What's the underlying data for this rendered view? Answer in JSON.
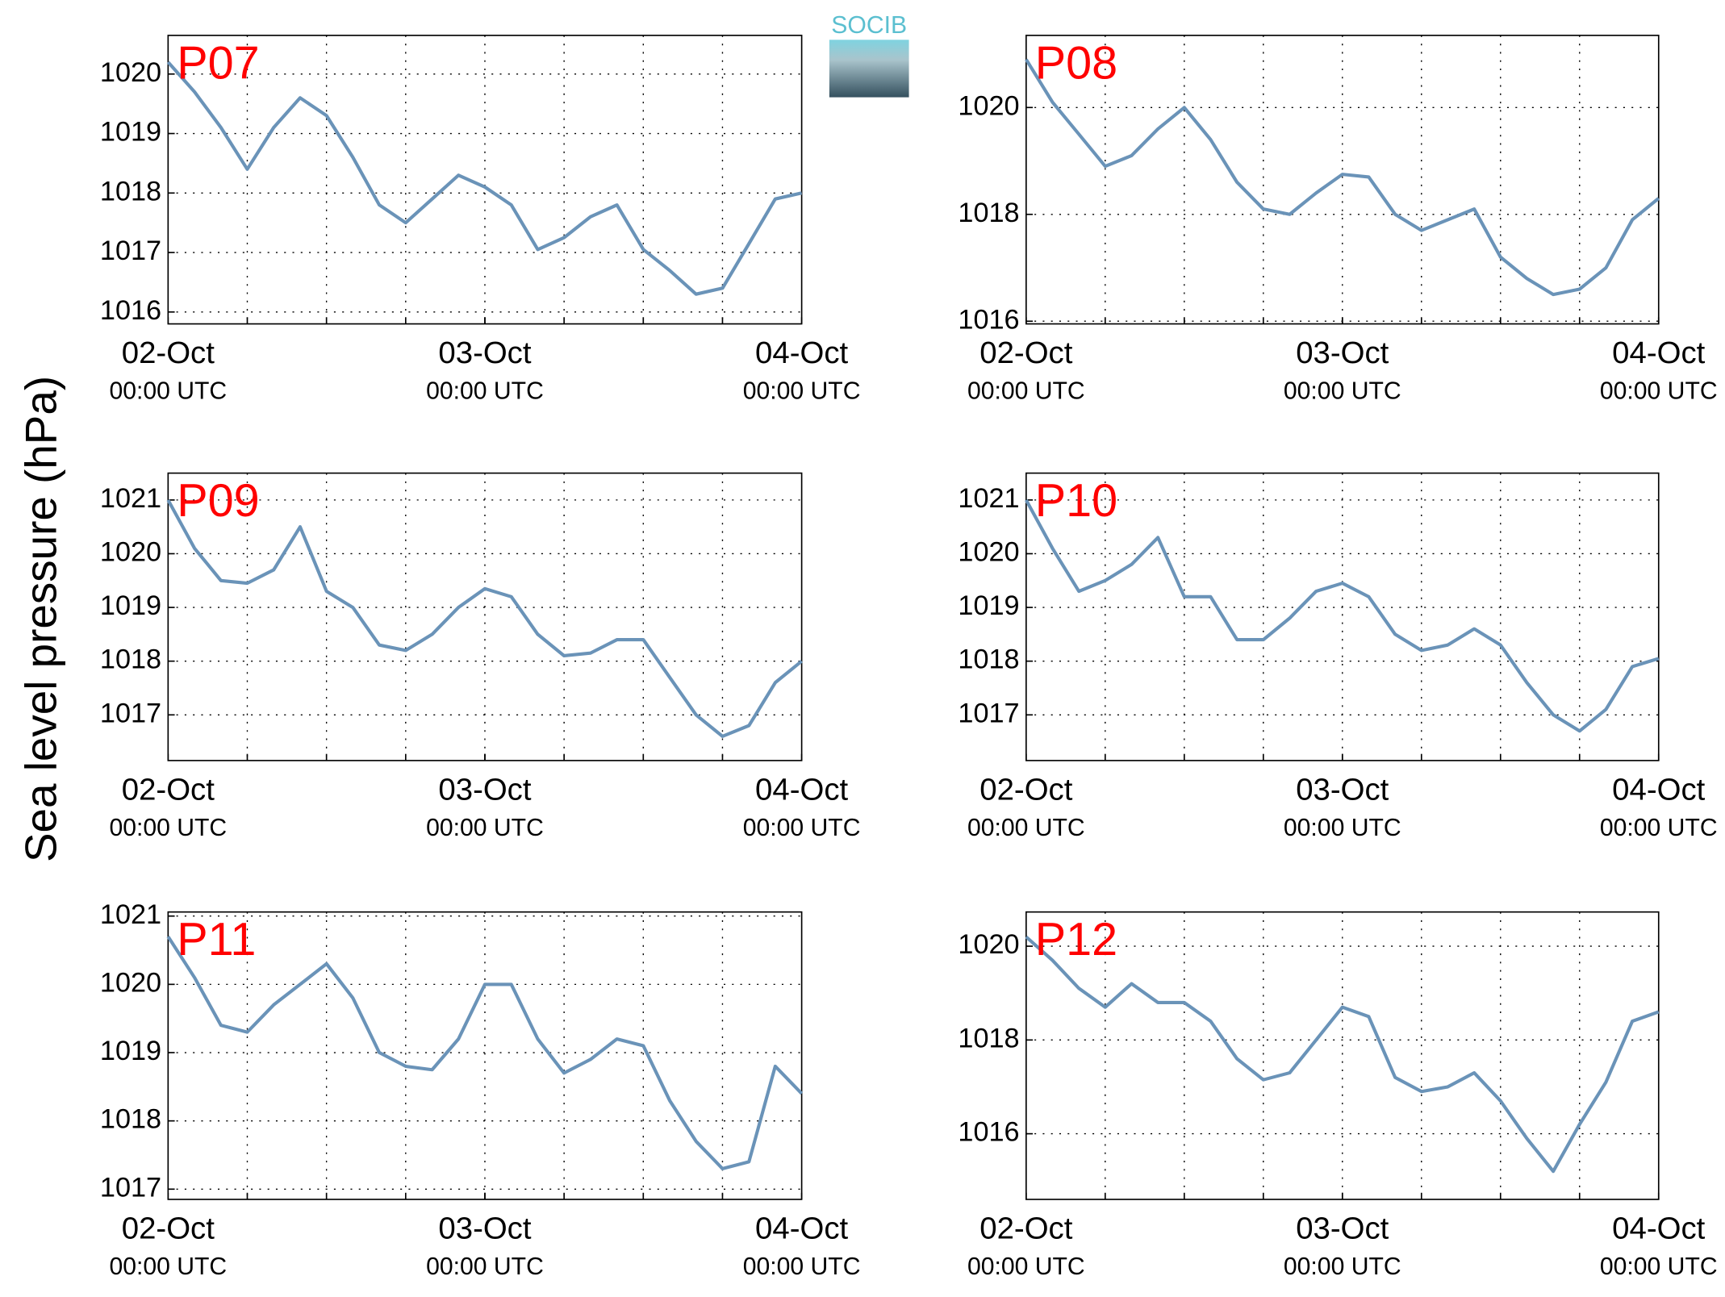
{
  "ylabel": "Sea level pressure (hPa)",
  "logo": "SOCIB",
  "chart_data": [
    {
      "type": "line",
      "title": "P07",
      "color": "#6a93b8",
      "x": [
        0,
        2,
        4,
        6,
        8,
        10,
        12,
        14,
        16,
        18,
        20,
        22,
        24,
        26,
        28,
        30,
        32,
        34,
        36,
        38,
        40,
        42,
        44,
        46,
        48
      ],
      "values": [
        1020.2,
        1019.7,
        1019.1,
        1018.4,
        1019.1,
        1019.6,
        1019.3,
        1018.6,
        1017.8,
        1017.5,
        1017.9,
        1018.3,
        1018.1,
        1017.8,
        1017.05,
        1017.25,
        1017.6,
        1017.8,
        1017.05,
        1016.7,
        1016.3,
        1016.4,
        1017.15,
        1017.9,
        1018.0
      ],
      "xlim": [
        0,
        48
      ],
      "xgrid": [
        6,
        12,
        18,
        24,
        30,
        36,
        42
      ],
      "xticks": [
        {
          "value": 0,
          "label": "02-Oct",
          "sublabel": "00:00 UTC"
        },
        {
          "value": 24,
          "label": "03-Oct",
          "sublabel": "00:00 UTC"
        },
        {
          "value": 48,
          "label": "04-Oct",
          "sublabel": "00:00 UTC"
        }
      ],
      "ylim": [
        1015.8,
        1020.65
      ],
      "yticks": [
        1016,
        1017,
        1018,
        1019,
        1020
      ],
      "grid": true
    },
    {
      "type": "line",
      "title": "P08",
      "color": "#6a93b8",
      "x": [
        0,
        2,
        4,
        6,
        8,
        10,
        12,
        14,
        16,
        18,
        20,
        22,
        24,
        26,
        28,
        30,
        32,
        34,
        36,
        38,
        40,
        42,
        44,
        46,
        48
      ],
      "values": [
        1020.9,
        1020.1,
        1019.5,
        1018.9,
        1019.1,
        1019.6,
        1020.0,
        1019.4,
        1018.6,
        1018.1,
        1018.0,
        1018.4,
        1018.75,
        1018.7,
        1018.0,
        1017.7,
        1017.9,
        1018.1,
        1017.2,
        1016.8,
        1016.5,
        1016.6,
        1017.0,
        1017.9,
        1018.3
      ],
      "xlim": [
        0,
        48
      ],
      "xgrid": [
        6,
        12,
        18,
        24,
        30,
        36,
        42
      ],
      "xticks": [
        {
          "value": 0,
          "label": "02-Oct",
          "sublabel": "00:00 UTC"
        },
        {
          "value": 24,
          "label": "03-Oct",
          "sublabel": "00:00 UTC"
        },
        {
          "value": 48,
          "label": "04-Oct",
          "sublabel": "00:00 UTC"
        }
      ],
      "ylim": [
        1015.95,
        1021.35
      ],
      "yticks": [
        1016,
        1018,
        1020
      ],
      "grid": true
    },
    {
      "type": "line",
      "title": "P09",
      "color": "#6a93b8",
      "x": [
        0,
        2,
        4,
        6,
        8,
        10,
        12,
        14,
        16,
        18,
        20,
        22,
        24,
        26,
        28,
        30,
        32,
        34,
        36,
        38,
        40,
        42,
        44,
        46,
        48
      ],
      "values": [
        1021.0,
        1020.1,
        1019.5,
        1019.45,
        1019.7,
        1020.5,
        1019.3,
        1019.0,
        1018.3,
        1018.2,
        1018.5,
        1019.0,
        1019.35,
        1019.2,
        1018.5,
        1018.1,
        1018.15,
        1018.4,
        1018.4,
        1017.7,
        1017.0,
        1016.6,
        1016.8,
        1017.6,
        1018.0
      ],
      "xlim": [
        0,
        48
      ],
      "xgrid": [
        6,
        12,
        18,
        24,
        30,
        36,
        42
      ],
      "xticks": [
        {
          "value": 0,
          "label": "02-Oct",
          "sublabel": "00:00 UTC"
        },
        {
          "value": 24,
          "label": "03-Oct",
          "sublabel": "00:00 UTC"
        },
        {
          "value": 48,
          "label": "04-Oct",
          "sublabel": "00:00 UTC"
        }
      ],
      "ylim": [
        1016.15,
        1021.5
      ],
      "yticks": [
        1017,
        1018,
        1019,
        1020,
        1021
      ],
      "grid": true
    },
    {
      "type": "line",
      "title": "P10",
      "color": "#6a93b8",
      "x": [
        0,
        2,
        4,
        6,
        8,
        10,
        12,
        14,
        16,
        18,
        20,
        22,
        24,
        26,
        28,
        30,
        32,
        34,
        36,
        38,
        40,
        42,
        44,
        46,
        48
      ],
      "values": [
        1021.0,
        1020.1,
        1019.3,
        1019.5,
        1019.8,
        1020.3,
        1019.2,
        1019.2,
        1018.4,
        1018.4,
        1018.8,
        1019.3,
        1019.45,
        1019.2,
        1018.5,
        1018.2,
        1018.3,
        1018.6,
        1018.3,
        1017.6,
        1017.0,
        1016.7,
        1017.1,
        1017.9,
        1018.05
      ],
      "xlim": [
        0,
        48
      ],
      "xgrid": [
        6,
        12,
        18,
        24,
        30,
        36,
        42
      ],
      "xticks": [
        {
          "value": 0,
          "label": "02-Oct",
          "sublabel": "00:00 UTC"
        },
        {
          "value": 24,
          "label": "03-Oct",
          "sublabel": "00:00 UTC"
        },
        {
          "value": 48,
          "label": "04-Oct",
          "sublabel": "00:00 UTC"
        }
      ],
      "ylim": [
        1016.15,
        1021.5
      ],
      "yticks": [
        1017,
        1018,
        1019,
        1020,
        1021
      ],
      "grid": true
    },
    {
      "type": "line",
      "title": "P11",
      "color": "#6a93b8",
      "x": [
        0,
        2,
        4,
        6,
        8,
        10,
        12,
        14,
        16,
        18,
        20,
        22,
        24,
        26,
        28,
        30,
        32,
        34,
        36,
        38,
        40,
        42,
        44,
        46,
        48
      ],
      "values": [
        1020.7,
        1020.1,
        1019.4,
        1019.3,
        1019.7,
        1020.0,
        1020.3,
        1019.8,
        1019.0,
        1018.8,
        1018.75,
        1019.2,
        1020.0,
        1020.0,
        1019.2,
        1018.7,
        1018.9,
        1019.2,
        1019.1,
        1018.3,
        1017.7,
        1017.3,
        1017.4,
        1018.8,
        1018.4
      ],
      "xlim": [
        0,
        48
      ],
      "xgrid": [
        6,
        12,
        18,
        24,
        30,
        36,
        42
      ],
      "xticks": [
        {
          "value": 0,
          "label": "02-Oct",
          "sublabel": "00:00 UTC"
        },
        {
          "value": 24,
          "label": "03-Oct",
          "sublabel": "00:00 UTC"
        },
        {
          "value": 48,
          "label": "04-Oct",
          "sublabel": "00:00 UTC"
        }
      ],
      "ylim": [
        1016.85,
        1021.06
      ],
      "yticks": [
        1017,
        1018,
        1019,
        1020,
        1021
      ],
      "grid": true
    },
    {
      "type": "line",
      "title": "P12",
      "color": "#6a93b8",
      "x": [
        0,
        2,
        4,
        6,
        8,
        10,
        12,
        14,
        16,
        18,
        20,
        22,
        24,
        26,
        28,
        30,
        32,
        34,
        36,
        38,
        40,
        42,
        44,
        46,
        48
      ],
      "values": [
        1020.2,
        1019.7,
        1019.1,
        1018.7,
        1019.2,
        1018.8,
        1018.8,
        1018.4,
        1017.6,
        1017.15,
        1017.3,
        1018.0,
        1018.7,
        1018.5,
        1017.2,
        1016.9,
        1017.0,
        1017.3,
        1016.7,
        1015.9,
        1015.2,
        1016.2,
        1017.1,
        1018.4,
        1018.6
      ],
      "xlim": [
        0,
        48
      ],
      "xgrid": [
        6,
        12,
        18,
        24,
        30,
        36,
        42
      ],
      "xticks": [
        {
          "value": 0,
          "label": "02-Oct",
          "sublabel": "00:00 UTC"
        },
        {
          "value": 24,
          "label": "03-Oct",
          "sublabel": "00:00 UTC"
        },
        {
          "value": 48,
          "label": "04-Oct",
          "sublabel": "00:00 UTC"
        }
      ],
      "ylim": [
        1014.6,
        1020.73
      ],
      "yticks": [
        1016,
        1018,
        1020
      ],
      "grid": true
    }
  ]
}
